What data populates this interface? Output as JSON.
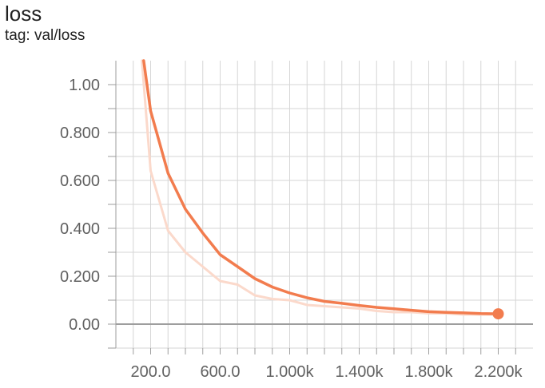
{
  "card": {
    "title": "loss",
    "tag": "tag: val/loss"
  },
  "chart_data": {
    "type": "line",
    "title": "loss",
    "subtitle": "tag: val/loss",
    "xlabel": "",
    "ylabel": "",
    "xlim": [
      0,
      2400
    ],
    "ylim": [
      -0.1,
      1.1
    ],
    "grid": true,
    "x_ticks": [
      200,
      600,
      1000,
      1400,
      1800,
      2200
    ],
    "x_tick_labels": [
      "200.0",
      "600.0",
      "1.000k",
      "1.400k",
      "1.800k",
      "2.200k"
    ],
    "y_ticks": [
      0,
      0.2,
      0.4,
      0.6,
      0.8,
      1.0
    ],
    "y_tick_labels": [
      "0.00",
      "0.200",
      "0.400",
      "0.600",
      "0.800",
      "1.00"
    ],
    "series": [
      {
        "role": "raw",
        "color": "#fbd9cb",
        "x": [
          150,
          200,
          300,
          400,
          500,
          600,
          700,
          800,
          900,
          1000,
          1100,
          1200,
          1300,
          1400,
          1500,
          1600,
          1700,
          1800,
          1900,
          2000,
          2100,
          2200
        ],
        "y": [
          1.1,
          0.64,
          0.39,
          0.3,
          0.24,
          0.18,
          0.165,
          0.12,
          0.105,
          0.1,
          0.08,
          0.075,
          0.07,
          0.065,
          0.055,
          0.05,
          0.05,
          0.045,
          0.045,
          0.04,
          0.04,
          0.04
        ]
      },
      {
        "role": "smoothed",
        "color": "#f27c4e",
        "x": [
          160,
          200,
          300,
          400,
          500,
          600,
          700,
          800,
          900,
          1000,
          1100,
          1200,
          1300,
          1400,
          1500,
          1600,
          1700,
          1800,
          1900,
          2000,
          2100,
          2200
        ],
        "y": [
          1.1,
          0.89,
          0.63,
          0.48,
          0.38,
          0.29,
          0.24,
          0.19,
          0.155,
          0.13,
          0.11,
          0.095,
          0.087,
          0.078,
          0.07,
          0.064,
          0.058,
          0.052,
          0.049,
          0.047,
          0.044,
          0.043
        ]
      }
    ],
    "last_point": {
      "x": 2200,
      "y": 0.043
    }
  }
}
